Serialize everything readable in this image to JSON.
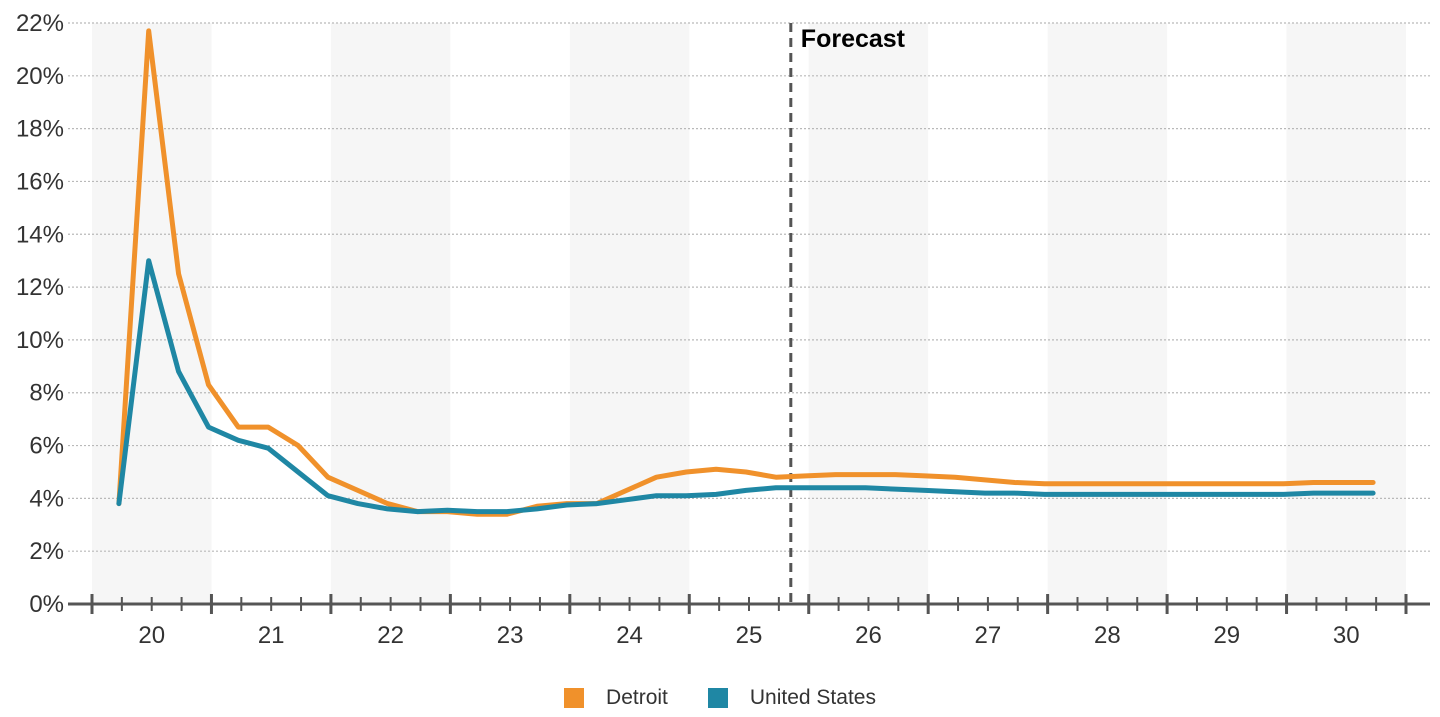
{
  "chart_data": {
    "type": "line",
    "title": "",
    "xlabel": "",
    "ylabel": "",
    "x_tick_labels": [
      "20",
      "21",
      "22",
      "23",
      "24",
      "25",
      "26",
      "27",
      "28",
      "29",
      "30"
    ],
    "x_range": [
      2019.9,
      2030.9
    ],
    "ylim": [
      0,
      22
    ],
    "y_ticks": [
      0,
      2,
      4,
      6,
      8,
      10,
      12,
      14,
      16,
      18,
      20,
      22
    ],
    "y_tick_labels": [
      "0%",
      "2%",
      "4%",
      "6%",
      "8%",
      "10%",
      "12%",
      "14%",
      "16%",
      "18%",
      "20%",
      "22%"
    ],
    "grid": true,
    "shaded_alternate_years": true,
    "forecast_start": 2025.75,
    "annotation": "Forecast",
    "legend_position": "bottom-center",
    "series": [
      {
        "name": "Detroit",
        "color": "#F0912B",
        "x": [
          2020.125,
          2020.375,
          2020.625,
          2020.875,
          2021.125,
          2021.375,
          2021.625,
          2021.875,
          2022.125,
          2022.375,
          2022.625,
          2022.875,
          2023.125,
          2023.375,
          2023.625,
          2023.875,
          2024.125,
          2024.375,
          2024.625,
          2024.875,
          2025.125,
          2025.375,
          2025.625,
          2025.875,
          2026.125,
          2026.375,
          2026.625,
          2026.875,
          2027.125,
          2027.375,
          2027.625,
          2027.875,
          2028.125,
          2028.375,
          2028.625,
          2028.875,
          2029.125,
          2029.375,
          2029.625,
          2029.875,
          2030.125,
          2030.375,
          2030.625
        ],
        "values": [
          3.8,
          21.7,
          12.5,
          8.3,
          6.7,
          6.7,
          6.0,
          4.8,
          4.3,
          3.8,
          3.5,
          3.5,
          3.4,
          3.4,
          3.7,
          3.8,
          3.8,
          4.3,
          4.8,
          5.0,
          5.1,
          5.0,
          4.8,
          4.85,
          4.9,
          4.9,
          4.9,
          4.85,
          4.8,
          4.7,
          4.6,
          4.55,
          4.55,
          4.55,
          4.55,
          4.55,
          4.55,
          4.55,
          4.55,
          4.55,
          4.6,
          4.6,
          4.6
        ]
      },
      {
        "name": "United States",
        "color": "#1F87A4",
        "x": [
          2020.125,
          2020.375,
          2020.625,
          2020.875,
          2021.125,
          2021.375,
          2021.625,
          2021.875,
          2022.125,
          2022.375,
          2022.625,
          2022.875,
          2023.125,
          2023.375,
          2023.625,
          2023.875,
          2024.125,
          2024.375,
          2024.625,
          2024.875,
          2025.125,
          2025.375,
          2025.625,
          2025.875,
          2026.125,
          2026.375,
          2026.625,
          2026.875,
          2027.125,
          2027.375,
          2027.625,
          2027.875,
          2028.125,
          2028.375,
          2028.625,
          2028.875,
          2029.125,
          2029.375,
          2029.625,
          2029.875,
          2030.125,
          2030.375,
          2030.625
        ],
        "values": [
          3.8,
          13.0,
          8.8,
          6.7,
          6.2,
          5.9,
          5.0,
          4.1,
          3.8,
          3.6,
          3.5,
          3.55,
          3.5,
          3.5,
          3.6,
          3.75,
          3.8,
          3.95,
          4.1,
          4.1,
          4.15,
          4.3,
          4.4,
          4.4,
          4.4,
          4.4,
          4.35,
          4.3,
          4.25,
          4.2,
          4.2,
          4.15,
          4.15,
          4.15,
          4.15,
          4.15,
          4.15,
          4.15,
          4.15,
          4.15,
          4.2,
          4.2,
          4.2
        ]
      }
    ]
  }
}
